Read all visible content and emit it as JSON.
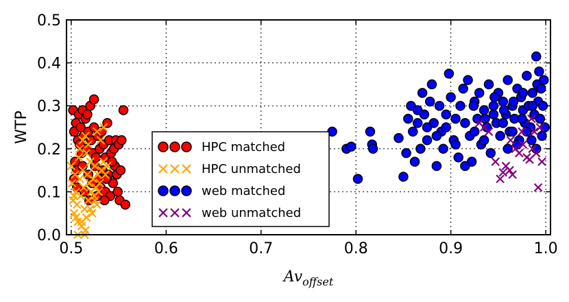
{
  "chart_data": {
    "type": "scatter",
    "title": "",
    "xlabel": "Av",
    "xlabel_subscript": "offset",
    "ylabel": "WTP",
    "xlim": [
      0.495,
      1.005
    ],
    "ylim": [
      0.0,
      0.5
    ],
    "xticks": [
      0.5,
      0.6,
      0.7,
      0.8,
      0.9,
      1.0
    ],
    "xtick_labels": [
      "0.5",
      "0.6",
      "0.7",
      "0.8",
      "0.9",
      "1.0"
    ],
    "yticks": [
      0.0,
      0.1,
      0.2,
      0.3,
      0.4,
      0.5
    ],
    "ytick_labels": [
      "0.0",
      "0.1",
      "0.2",
      "0.3",
      "0.4",
      "0.5"
    ],
    "grid": true,
    "legend_position": "lower-left-center",
    "series": [
      {
        "name": "HPC matched",
        "marker": "circle",
        "color": "#ff0000",
        "points": [
          [
            0.502,
            0.29
          ],
          [
            0.505,
            0.26
          ],
          [
            0.503,
            0.24
          ],
          [
            0.508,
            0.28
          ],
          [
            0.51,
            0.25
          ],
          [
            0.512,
            0.29
          ],
          [
            0.515,
            0.27
          ],
          [
            0.52,
            0.3
          ],
          [
            0.524,
            0.315
          ],
          [
            0.507,
            0.22
          ],
          [
            0.509,
            0.21
          ],
          [
            0.511,
            0.19
          ],
          [
            0.513,
            0.23
          ],
          [
            0.516,
            0.2
          ],
          [
            0.518,
            0.24
          ],
          [
            0.521,
            0.22
          ],
          [
            0.523,
            0.19
          ],
          [
            0.526,
            0.18
          ],
          [
            0.528,
            0.23
          ],
          [
            0.53,
            0.2
          ],
          [
            0.532,
            0.24
          ],
          [
            0.534,
            0.21
          ],
          [
            0.536,
            0.18
          ],
          [
            0.538,
            0.26
          ],
          [
            0.54,
            0.22
          ],
          [
            0.542,
            0.19
          ],
          [
            0.545,
            0.2
          ],
          [
            0.547,
            0.22
          ],
          [
            0.55,
            0.21
          ],
          [
            0.553,
            0.22
          ],
          [
            0.555,
            0.29
          ],
          [
            0.504,
            0.17
          ],
          [
            0.506,
            0.15
          ],
          [
            0.512,
            0.16
          ],
          [
            0.518,
            0.14
          ],
          [
            0.522,
            0.12
          ],
          [
            0.525,
            0.16
          ],
          [
            0.529,
            0.13
          ],
          [
            0.531,
            0.11
          ],
          [
            0.533,
            0.15
          ],
          [
            0.536,
            0.1
          ],
          [
            0.539,
            0.14
          ],
          [
            0.541,
            0.09
          ],
          [
            0.544,
            0.12
          ],
          [
            0.546,
            0.16
          ],
          [
            0.549,
            0.1
          ],
          [
            0.551,
            0.08
          ],
          [
            0.557,
            0.07
          ],
          [
            0.535,
            0.08
          ],
          [
            0.527,
            0.09
          ],
          [
            0.514,
            0.1
          ],
          [
            0.506,
            0.11
          ],
          [
            0.503,
            0.13
          ],
          [
            0.519,
            0.08
          ],
          [
            0.543,
            0.17
          ],
          [
            0.548,
            0.14
          ],
          [
            0.537,
            0.13
          ],
          [
            0.552,
            0.15
          ],
          [
            0.524,
            0.25
          ],
          [
            0.517,
            0.28
          ]
        ]
      },
      {
        "name": "HPC unmatched",
        "marker": "x",
        "color": "#ffa500",
        "points": [
          [
            0.5,
            0.16
          ],
          [
            0.501,
            0.12
          ],
          [
            0.502,
            0.08
          ],
          [
            0.503,
            0.05
          ],
          [
            0.504,
            0.14
          ],
          [
            0.505,
            0.1
          ],
          [
            0.506,
            0.07
          ],
          [
            0.507,
            0.03
          ],
          [
            0.508,
            0.18
          ],
          [
            0.509,
            0.13
          ],
          [
            0.51,
            0.09
          ],
          [
            0.511,
            0.02
          ],
          [
            0.512,
            0.15
          ],
          [
            0.513,
            0.11
          ],
          [
            0.514,
            0.06
          ],
          [
            0.515,
            0.01
          ],
          [
            0.516,
            0.19
          ],
          [
            0.517,
            0.14
          ],
          [
            0.518,
            0.08
          ],
          [
            0.519,
            0.12
          ],
          [
            0.52,
            0.17
          ],
          [
            0.521,
            0.1
          ],
          [
            0.522,
            0.05
          ],
          [
            0.523,
            0.13
          ],
          [
            0.524,
            0.09
          ],
          [
            0.525,
            0.16
          ],
          [
            0.526,
            0.11
          ],
          [
            0.527,
            0.07
          ],
          [
            0.528,
            0.14
          ],
          [
            0.53,
            0.12
          ],
          [
            0.532,
            0.15
          ],
          [
            0.534,
            0.17
          ],
          [
            0.536,
            0.14
          ],
          [
            0.538,
            0.16
          ],
          [
            0.512,
            0.22
          ],
          [
            0.515,
            0.23
          ],
          [
            0.518,
            0.21
          ],
          [
            0.527,
            0.24
          ],
          [
            0.531,
            0.22
          ],
          [
            0.534,
            0.25
          ],
          [
            0.509,
            0.2
          ],
          [
            0.505,
            0.04
          ],
          [
            0.511,
            0.03
          ],
          [
            0.514,
            0.0
          ],
          [
            0.507,
            0.0
          ],
          [
            0.503,
            0.09
          ],
          [
            0.52,
            0.06
          ],
          [
            0.525,
            0.08
          ],
          [
            0.516,
            0.04
          ],
          [
            0.529,
            0.1
          ]
        ]
      },
      {
        "name": "web matched",
        "marker": "circle",
        "color": "#0000ff",
        "points": [
          [
            0.775,
            0.24
          ],
          [
            0.79,
            0.2
          ],
          [
            0.795,
            0.205
          ],
          [
            0.802,
            0.13
          ],
          [
            0.815,
            0.24
          ],
          [
            0.817,
            0.21
          ],
          [
            0.818,
            0.2
          ],
          [
            0.845,
            0.225
          ],
          [
            0.85,
            0.135
          ],
          [
            0.853,
            0.19
          ],
          [
            0.855,
            0.27
          ],
          [
            0.858,
            0.3
          ],
          [
            0.86,
            0.24
          ],
          [
            0.862,
            0.17
          ],
          [
            0.865,
            0.26
          ],
          [
            0.868,
            0.2
          ],
          [
            0.87,
            0.33
          ],
          [
            0.872,
            0.28
          ],
          [
            0.875,
            0.22
          ],
          [
            0.878,
            0.31
          ],
          [
            0.88,
            0.35
          ],
          [
            0.882,
            0.26
          ],
          [
            0.885,
            0.16
          ],
          [
            0.888,
            0.3
          ],
          [
            0.89,
            0.24
          ],
          [
            0.892,
            0.2
          ],
          [
            0.895,
            0.28
          ],
          [
            0.898,
            0.375
          ],
          [
            0.9,
            0.32
          ],
          [
            0.903,
            0.22
          ],
          [
            0.905,
            0.27
          ],
          [
            0.908,
            0.18
          ],
          [
            0.91,
            0.3
          ],
          [
            0.913,
            0.34
          ],
          [
            0.915,
            0.26
          ],
          [
            0.918,
            0.36
          ],
          [
            0.92,
            0.23
          ],
          [
            0.922,
            0.17
          ],
          [
            0.925,
            0.31
          ],
          [
            0.928,
            0.27
          ],
          [
            0.93,
            0.33
          ],
          [
            0.932,
            0.21
          ],
          [
            0.935,
            0.29
          ],
          [
            0.938,
            0.25
          ],
          [
            0.94,
            0.35
          ],
          [
            0.942,
            0.19
          ],
          [
            0.945,
            0.3
          ],
          [
            0.948,
            0.26
          ],
          [
            0.95,
            0.33
          ],
          [
            0.952,
            0.23
          ],
          [
            0.955,
            0.31
          ],
          [
            0.958,
            0.28
          ],
          [
            0.96,
            0.36
          ],
          [
            0.962,
            0.24
          ],
          [
            0.965,
            0.3
          ],
          [
            0.967,
            0.27
          ],
          [
            0.97,
            0.34
          ],
          [
            0.972,
            0.22
          ],
          [
            0.974,
            0.32
          ],
          [
            0.976,
            0.29
          ],
          [
            0.978,
            0.26
          ],
          [
            0.98,
            0.37
          ],
          [
            0.982,
            0.3
          ],
          [
            0.984,
            0.25
          ],
          [
            0.986,
            0.33
          ],
          [
            0.988,
            0.28
          ],
          [
            0.99,
            0.415
          ],
          [
            0.991,
            0.35
          ],
          [
            0.992,
            0.31
          ],
          [
            0.993,
            0.38
          ],
          [
            0.994,
            0.27
          ],
          [
            0.995,
            0.34
          ],
          [
            0.996,
            0.23
          ],
          [
            0.997,
            0.3
          ],
          [
            0.998,
            0.36
          ],
          [
            0.999,
            0.25
          ],
          [
            0.924,
            0.3
          ],
          [
            0.936,
            0.27
          ],
          [
            0.946,
            0.32
          ],
          [
            0.956,
            0.29
          ],
          [
            0.966,
            0.31
          ],
          [
            0.976,
            0.33
          ],
          [
            0.986,
            0.3
          ],
          [
            0.96,
            0.2
          ],
          [
            0.97,
            0.21
          ],
          [
            0.98,
            0.24
          ],
          [
            0.99,
            0.2
          ],
          [
            0.915,
            0.16
          ],
          [
            0.905,
            0.21
          ],
          [
            0.895,
            0.25
          ],
          [
            0.865,
            0.29
          ],
          [
            0.875,
            0.25
          ],
          [
            0.885,
            0.23
          ],
          [
            0.925,
            0.24
          ],
          [
            0.935,
            0.22
          ],
          [
            0.945,
            0.28
          ],
          [
            0.955,
            0.26
          ],
          [
            0.965,
            0.24
          ],
          [
            0.975,
            0.27
          ],
          [
            0.985,
            0.22
          ]
        ]
      },
      {
        "name": "web unmatched",
        "marker": "x",
        "color": "#800080",
        "points": [
          [
            0.93,
            0.26
          ],
          [
            0.935,
            0.25
          ],
          [
            0.94,
            0.24
          ],
          [
            0.947,
            0.17
          ],
          [
            0.952,
            0.13
          ],
          [
            0.955,
            0.145
          ],
          [
            0.958,
            0.16
          ],
          [
            0.962,
            0.15
          ],
          [
            0.965,
            0.14
          ],
          [
            0.968,
            0.2
          ],
          [
            0.972,
            0.19
          ],
          [
            0.976,
            0.21
          ],
          [
            0.98,
            0.18
          ],
          [
            0.983,
            0.175
          ],
          [
            0.985,
            0.27
          ],
          [
            0.988,
            0.24
          ],
          [
            0.99,
            0.19
          ],
          [
            0.992,
            0.11
          ],
          [
            0.994,
            0.25
          ],
          [
            0.996,
            0.17
          ],
          [
            0.975,
            0.24
          ],
          [
            0.963,
            0.22
          ],
          [
            0.986,
            0.2
          ]
        ]
      }
    ]
  }
}
